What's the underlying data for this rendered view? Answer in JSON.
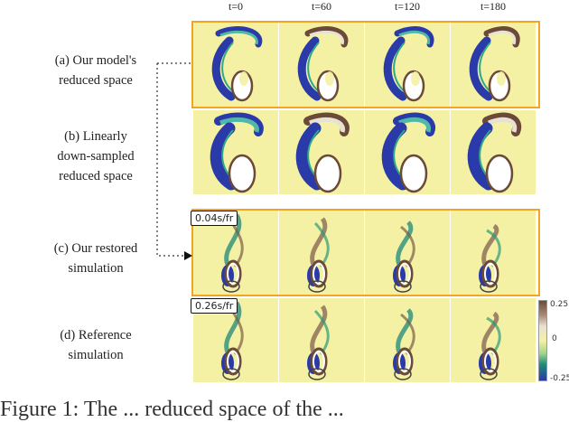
{
  "time_labels": [
    "t=0",
    "t=60",
    "t=120",
    "t=180"
  ],
  "rows": [
    {
      "label_lines": [
        "(a) Our model's",
        "reduced space"
      ]
    },
    {
      "label_lines": [
        "(b) Linearly",
        "down-sampled",
        "reduced space"
      ]
    },
    {
      "label_lines": [
        "(c) Our restored",
        "simulation"
      ],
      "badge": "0.04s/fr"
    },
    {
      "label_lines": [
        "(d) Reference",
        "simulation"
      ],
      "badge": "0.26s/fr"
    }
  ],
  "colorbar": {
    "max": "0.25",
    "mid": "0",
    "min": "-0.25"
  },
  "caption": "Figure 1: The ... reduced space of the ..."
}
